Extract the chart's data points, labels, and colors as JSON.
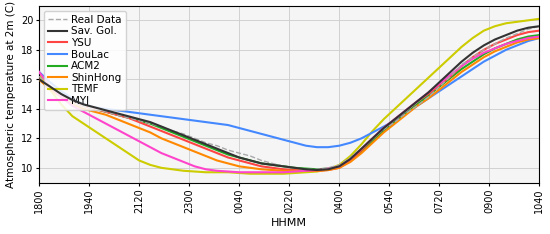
{
  "title": "",
  "xlabel": "HHMM",
  "ylabel": "Atmospheric temperature at 2m (C)",
  "xtick_labels": [
    "1800",
    "1940",
    "2120",
    "2300",
    "0040",
    "0220",
    "0400",
    "0540",
    "0720",
    "0900",
    "1040"
  ],
  "ylim": [
    9,
    21
  ],
  "ytick_values": [
    10,
    12,
    14,
    16,
    18,
    20
  ],
  "series": {
    "Real Data": {
      "color": "#aaaaaa",
      "linestyle": "--",
      "linewidth": 1.0,
      "zorder": 5,
      "data": [
        16.2,
        15.5,
        15.0,
        14.5,
        14.2,
        14.0,
        13.8,
        13.6,
        13.4,
        13.2,
        13.0,
        12.8,
        12.5,
        12.3,
        12.0,
        11.7,
        11.5,
        11.2,
        11.0,
        10.8,
        10.5,
        10.3,
        10.1,
        10.0,
        9.9,
        9.9,
        10.0,
        10.2,
        10.7,
        11.3,
        12.0,
        12.6,
        13.1,
        13.7,
        14.2,
        14.8,
        15.5,
        16.2,
        17.0,
        17.5,
        18.0,
        18.4,
        18.8,
        19.1,
        19.4,
        19.6
      ]
    },
    "Sav. Gol.": {
      "color": "#333333",
      "linestyle": "-",
      "linewidth": 1.5,
      "zorder": 6,
      "data": [
        16.0,
        15.5,
        15.0,
        14.6,
        14.3,
        14.1,
        13.9,
        13.7,
        13.5,
        13.3,
        13.1,
        12.8,
        12.5,
        12.2,
        11.9,
        11.6,
        11.3,
        11.0,
        10.7,
        10.5,
        10.3,
        10.2,
        10.1,
        10.0,
        9.9,
        9.85,
        9.9,
        10.1,
        10.6,
        11.3,
        12.0,
        12.7,
        13.3,
        13.9,
        14.5,
        15.1,
        15.8,
        16.5,
        17.2,
        17.8,
        18.3,
        18.7,
        19.0,
        19.3,
        19.5,
        19.6
      ]
    },
    "YSU": {
      "color": "#ff4444",
      "linestyle": "-",
      "linewidth": 1.5,
      "zorder": 4,
      "data": [
        16.0,
        15.4,
        14.9,
        14.5,
        14.2,
        14.0,
        13.8,
        13.6,
        13.4,
        13.1,
        12.8,
        12.5,
        12.2,
        11.9,
        11.6,
        11.3,
        11.0,
        10.7,
        10.5,
        10.3,
        10.1,
        10.0,
        9.9,
        9.85,
        9.8,
        9.8,
        9.85,
        10.0,
        10.5,
        11.2,
        12.0,
        12.7,
        13.3,
        13.9,
        14.5,
        15.0,
        15.6,
        16.2,
        16.9,
        17.5,
        18.0,
        18.4,
        18.7,
        19.0,
        19.2,
        19.3
      ]
    },
    "BouLac": {
      "color": "#4488ff",
      "linestyle": "-",
      "linewidth": 1.5,
      "zorder": 3,
      "data": [
        16.5,
        15.8,
        15.2,
        14.7,
        14.3,
        14.1,
        14.0,
        13.9,
        13.8,
        13.7,
        13.6,
        13.5,
        13.4,
        13.3,
        13.2,
        13.1,
        13.0,
        12.9,
        12.7,
        12.5,
        12.3,
        12.1,
        11.9,
        11.7,
        11.5,
        11.4,
        11.4,
        11.5,
        11.7,
        12.0,
        12.4,
        12.8,
        13.2,
        13.7,
        14.2,
        14.7,
        15.2,
        15.7,
        16.2,
        16.7,
        17.2,
        17.6,
        18.0,
        18.3,
        18.6,
        18.8
      ]
    },
    "ACM2": {
      "color": "#22aa22",
      "linestyle": "-",
      "linewidth": 1.5,
      "zorder": 3,
      "data": [
        16.0,
        15.4,
        14.9,
        14.5,
        14.2,
        14.0,
        13.8,
        13.6,
        13.4,
        13.2,
        13.0,
        12.7,
        12.4,
        12.1,
        11.8,
        11.5,
        11.2,
        10.9,
        10.7,
        10.5,
        10.3,
        10.2,
        10.1,
        10.0,
        9.95,
        9.9,
        9.95,
        10.1,
        10.5,
        11.1,
        11.8,
        12.5,
        13.1,
        13.7,
        14.3,
        14.9,
        15.5,
        16.1,
        16.7,
        17.2,
        17.7,
        18.1,
        18.4,
        18.7,
        18.9,
        19.0
      ]
    },
    "ShinHong": {
      "color": "#ff8800",
      "linestyle": "-",
      "linewidth": 1.5,
      "zorder": 4,
      "data": [
        16.0,
        15.3,
        14.8,
        14.3,
        14.0,
        13.8,
        13.6,
        13.3,
        13.0,
        12.7,
        12.4,
        12.0,
        11.7,
        11.4,
        11.1,
        10.8,
        10.5,
        10.3,
        10.1,
        10.0,
        9.9,
        9.85,
        9.8,
        9.8,
        9.8,
        9.8,
        9.85,
        10.0,
        10.4,
        11.0,
        11.7,
        12.4,
        13.0,
        13.6,
        14.2,
        14.7,
        15.3,
        15.9,
        16.5,
        17.0,
        17.5,
        17.9,
        18.2,
        18.5,
        18.7,
        18.8
      ]
    },
    "TEMF": {
      "color": "#cccc00",
      "linestyle": "-",
      "linewidth": 1.5,
      "zorder": 2,
      "data": [
        16.3,
        15.3,
        14.3,
        13.5,
        13.0,
        12.5,
        12.0,
        11.5,
        11.0,
        10.5,
        10.2,
        10.0,
        9.9,
        9.8,
        9.75,
        9.7,
        9.7,
        9.7,
        9.65,
        9.6,
        9.6,
        9.6,
        9.6,
        9.65,
        9.7,
        9.75,
        9.9,
        10.2,
        10.8,
        11.6,
        12.5,
        13.3,
        14.0,
        14.7,
        15.4,
        16.1,
        16.8,
        17.5,
        18.2,
        18.8,
        19.3,
        19.6,
        19.8,
        19.9,
        20.0,
        20.1
      ]
    },
    "MYJ": {
      "color": "#ff44cc",
      "linestyle": "-",
      "linewidth": 1.5,
      "zorder": 4,
      "data": [
        16.5,
        15.5,
        14.8,
        14.2,
        13.8,
        13.4,
        13.0,
        12.6,
        12.2,
        11.8,
        11.4,
        11.0,
        10.7,
        10.4,
        10.1,
        9.9,
        9.8,
        9.75,
        9.7,
        9.7,
        9.7,
        9.7,
        9.7,
        9.75,
        9.8,
        9.85,
        9.95,
        10.1,
        10.6,
        11.3,
        12.0,
        12.7,
        13.3,
        13.9,
        14.5,
        15.1,
        15.7,
        16.3,
        16.9,
        17.4,
        17.8,
        18.1,
        18.4,
        18.6,
        18.8,
        18.9
      ]
    }
  },
  "n_points": 46,
  "background_color": "#f5f5f5",
  "grid_color": "#cccccc",
  "legend_fontsize": 7.5,
  "axis_fontsize": 8
}
